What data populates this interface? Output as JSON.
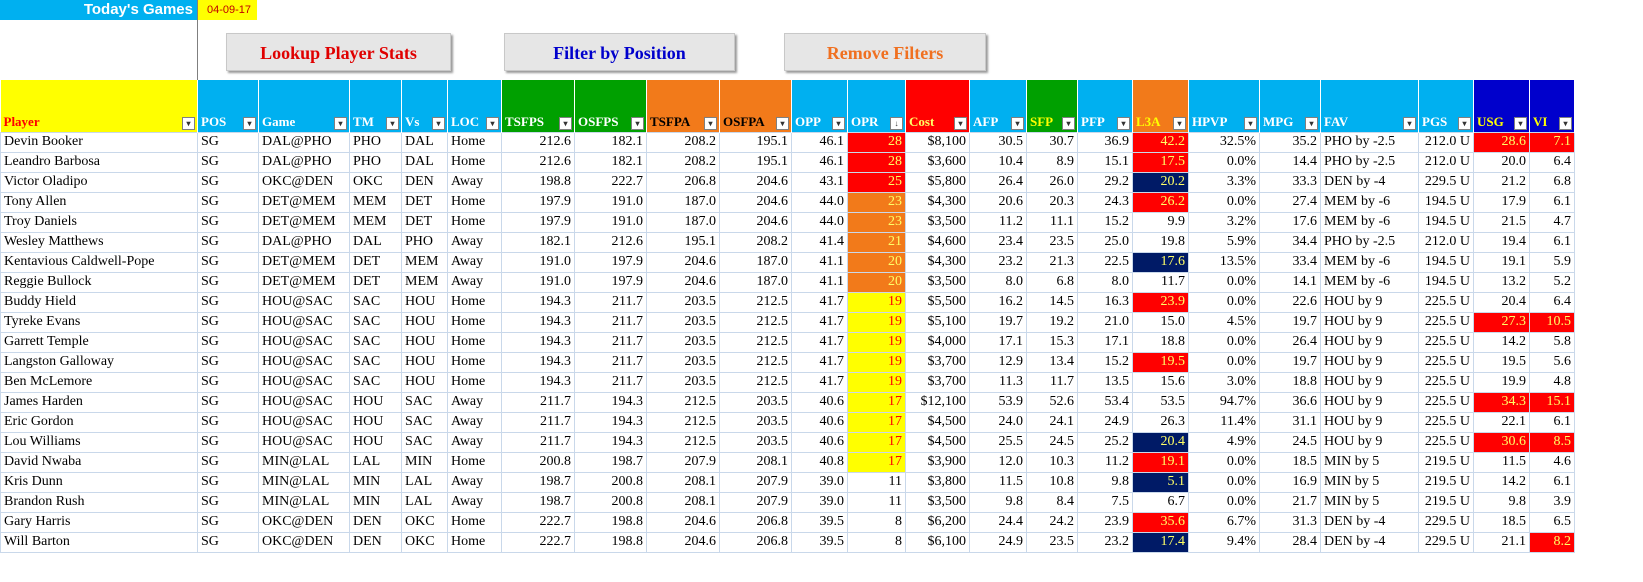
{
  "header": {
    "title": "Today's Games",
    "date": "04-09-17"
  },
  "buttons": {
    "lookup": "Lookup Player Stats",
    "filter": "Filter by Position",
    "remove": "Remove Filters"
  },
  "colors": {
    "title_bg": "#00b0f0",
    "lookup_text": "#e00000",
    "filter_text": "#0000cc",
    "remove_text": "#f07020",
    "hot": "#ff0000",
    "warm": "#f27a1a",
    "mild": "#ffff00",
    "cold": "#001a66"
  },
  "columns": [
    "Player",
    "POS",
    "Game",
    "TM",
    "Vs",
    "LOC",
    "TSFPS",
    "OSFPS",
    "TSFPA",
    "OSFPA",
    "OPP",
    "OPR",
    "Cost",
    "AFP",
    "SFP",
    "PFP",
    "L3A",
    "HPVP",
    "MPG",
    "FAV",
    "PGS",
    "USG",
    "VI"
  ],
  "rows": [
    [
      "Devin Booker",
      "SG",
      "DAL@PHO",
      "PHO",
      "DAL",
      "Home",
      "212.6",
      "182.1",
      "208.2",
      "195.1",
      "46.1",
      "28",
      "$8,100",
      "30.5",
      "30.7",
      "36.9",
      "42.2",
      "32.5%",
      "35.2",
      "PHO by -2.5",
      "212.0 U",
      "28.6",
      "7.1"
    ],
    [
      "Leandro Barbosa",
      "SG",
      "DAL@PHO",
      "PHO",
      "DAL",
      "Home",
      "212.6",
      "182.1",
      "208.2",
      "195.1",
      "46.1",
      "28",
      "$3,600",
      "10.4",
      "8.9",
      "15.1",
      "17.5",
      "0.0%",
      "14.4",
      "PHO by -2.5",
      "212.0 U",
      "20.0",
      "6.4"
    ],
    [
      "Victor Oladipo",
      "SG",
      "OKC@DEN",
      "OKC",
      "DEN",
      "Away",
      "198.8",
      "222.7",
      "206.8",
      "204.6",
      "43.1",
      "25",
      "$5,800",
      "26.4",
      "26.0",
      "29.2",
      "20.2",
      "3.3%",
      "33.3",
      "DEN by -4",
      "229.5 U",
      "21.2",
      "6.8"
    ],
    [
      "Tony Allen",
      "SG",
      "DET@MEM",
      "MEM",
      "DET",
      "Home",
      "197.9",
      "191.0",
      "187.0",
      "204.6",
      "44.0",
      "23",
      "$4,300",
      "20.6",
      "20.3",
      "24.3",
      "26.2",
      "0.0%",
      "27.4",
      "MEM by -6",
      "194.5 U",
      "17.9",
      "6.1"
    ],
    [
      "Troy Daniels",
      "SG",
      "DET@MEM",
      "MEM",
      "DET",
      "Home",
      "197.9",
      "191.0",
      "187.0",
      "204.6",
      "44.0",
      "23",
      "$3,500",
      "11.2",
      "11.1",
      "15.2",
      "9.9",
      "3.2%",
      "17.6",
      "MEM by -6",
      "194.5 U",
      "21.5",
      "4.7"
    ],
    [
      "Wesley Matthews",
      "SG",
      "DAL@PHO",
      "DAL",
      "PHO",
      "Away",
      "182.1",
      "212.6",
      "195.1",
      "208.2",
      "41.4",
      "21",
      "$4,600",
      "23.4",
      "23.5",
      "25.0",
      "19.8",
      "5.9%",
      "34.4",
      "PHO by -2.5",
      "212.0 U",
      "19.4",
      "6.1"
    ],
    [
      "Kentavious Caldwell-Pope",
      "SG",
      "DET@MEM",
      "DET",
      "MEM",
      "Away",
      "191.0",
      "197.9",
      "204.6",
      "187.0",
      "41.1",
      "20",
      "$4,300",
      "23.2",
      "21.3",
      "22.5",
      "17.6",
      "13.5%",
      "33.4",
      "MEM by -6",
      "194.5 U",
      "19.1",
      "5.9"
    ],
    [
      "Reggie Bullock",
      "SG",
      "DET@MEM",
      "DET",
      "MEM",
      "Away",
      "191.0",
      "197.9",
      "204.6",
      "187.0",
      "41.1",
      "20",
      "$3,500",
      "8.0",
      "6.8",
      "8.0",
      "11.7",
      "0.0%",
      "14.1",
      "MEM by -6",
      "194.5 U",
      "13.2",
      "5.2"
    ],
    [
      "Buddy Hield",
      "SG",
      "HOU@SAC",
      "SAC",
      "HOU",
      "Home",
      "194.3",
      "211.7",
      "203.5",
      "212.5",
      "41.7",
      "19",
      "$5,500",
      "16.2",
      "14.5",
      "16.3",
      "23.9",
      "0.0%",
      "22.6",
      "HOU by 9",
      "225.5 U",
      "20.4",
      "6.4"
    ],
    [
      "Tyreke Evans",
      "SG",
      "HOU@SAC",
      "SAC",
      "HOU",
      "Home",
      "194.3",
      "211.7",
      "203.5",
      "212.5",
      "41.7",
      "19",
      "$5,100",
      "19.7",
      "19.2",
      "21.0",
      "15.0",
      "4.5%",
      "19.7",
      "HOU by 9",
      "225.5 U",
      "27.3",
      "10.5"
    ],
    [
      "Garrett Temple",
      "SG",
      "HOU@SAC",
      "SAC",
      "HOU",
      "Home",
      "194.3",
      "211.7",
      "203.5",
      "212.5",
      "41.7",
      "19",
      "$4,000",
      "17.1",
      "15.3",
      "17.1",
      "18.8",
      "0.0%",
      "26.4",
      "HOU by 9",
      "225.5 U",
      "14.2",
      "5.8"
    ],
    [
      "Langston Galloway",
      "SG",
      "HOU@SAC",
      "SAC",
      "HOU",
      "Home",
      "194.3",
      "211.7",
      "203.5",
      "212.5",
      "41.7",
      "19",
      "$3,700",
      "12.9",
      "13.4",
      "15.2",
      "19.5",
      "0.0%",
      "19.7",
      "HOU by 9",
      "225.5 U",
      "19.5",
      "5.6"
    ],
    [
      "Ben McLemore",
      "SG",
      "HOU@SAC",
      "SAC",
      "HOU",
      "Home",
      "194.3",
      "211.7",
      "203.5",
      "212.5",
      "41.7",
      "19",
      "$3,700",
      "11.3",
      "11.7",
      "13.5",
      "15.6",
      "3.0%",
      "18.8",
      "HOU by 9",
      "225.5 U",
      "19.9",
      "4.8"
    ],
    [
      "James Harden",
      "SG",
      "HOU@SAC",
      "HOU",
      "SAC",
      "Away",
      "211.7",
      "194.3",
      "212.5",
      "203.5",
      "40.6",
      "17",
      "$12,100",
      "53.9",
      "52.6",
      "53.4",
      "53.5",
      "94.7%",
      "36.6",
      "HOU by 9",
      "225.5 U",
      "34.3",
      "15.1"
    ],
    [
      "Eric Gordon",
      "SG",
      "HOU@SAC",
      "HOU",
      "SAC",
      "Away",
      "211.7",
      "194.3",
      "212.5",
      "203.5",
      "40.6",
      "17",
      "$4,500",
      "24.0",
      "24.1",
      "24.9",
      "26.3",
      "11.4%",
      "31.1",
      "HOU by 9",
      "225.5 U",
      "22.1",
      "6.1"
    ],
    [
      "Lou Williams",
      "SG",
      "HOU@SAC",
      "HOU",
      "SAC",
      "Away",
      "211.7",
      "194.3",
      "212.5",
      "203.5",
      "40.6",
      "17",
      "$4,500",
      "25.5",
      "24.5",
      "25.2",
      "20.4",
      "4.9%",
      "24.5",
      "HOU by 9",
      "225.5 U",
      "30.6",
      "8.5"
    ],
    [
      "David Nwaba",
      "SG",
      "MIN@LAL",
      "LAL",
      "MIN",
      "Home",
      "200.8",
      "198.7",
      "207.9",
      "208.1",
      "40.8",
      "17",
      "$3,900",
      "12.0",
      "10.3",
      "11.2",
      "19.1",
      "0.0%",
      "18.5",
      "MIN by 5",
      "219.5 U",
      "11.5",
      "4.6"
    ],
    [
      "Kris Dunn",
      "SG",
      "MIN@LAL",
      "MIN",
      "LAL",
      "Away",
      "198.7",
      "200.8",
      "208.1",
      "207.9",
      "39.0",
      "11",
      "$3,800",
      "11.5",
      "10.8",
      "9.8",
      "5.1",
      "0.0%",
      "16.9",
      "MIN by 5",
      "219.5 U",
      "14.2",
      "6.1"
    ],
    [
      "Brandon Rush",
      "SG",
      "MIN@LAL",
      "MIN",
      "LAL",
      "Away",
      "198.7",
      "200.8",
      "208.1",
      "207.9",
      "39.0",
      "11",
      "$3,500",
      "9.8",
      "8.4",
      "7.5",
      "6.7",
      "0.0%",
      "21.7",
      "MIN by 5",
      "219.5 U",
      "9.8",
      "3.9"
    ],
    [
      "Gary Harris",
      "SG",
      "OKC@DEN",
      "DEN",
      "OKC",
      "Home",
      "222.7",
      "198.8",
      "204.6",
      "206.8",
      "39.5",
      "8",
      "$6,200",
      "24.4",
      "24.2",
      "23.9",
      "35.6",
      "6.7%",
      "31.3",
      "DEN by -4",
      "229.5 U",
      "18.5",
      "6.5"
    ],
    [
      "Will Barton",
      "SG",
      "OKC@DEN",
      "DEN",
      "OKC",
      "Home",
      "222.7",
      "198.8",
      "204.6",
      "206.8",
      "39.5",
      "8",
      "$6,100",
      "24.9",
      "23.5",
      "23.2",
      "17.4",
      "9.4%",
      "28.4",
      "DEN by -4",
      "229.5 U",
      "21.1",
      "8.2"
    ]
  ],
  "highlights": {
    "opr": [
      "red",
      "red",
      "red",
      "orange",
      "orange",
      "orange",
      "orange",
      "orange",
      "yellow",
      "yellow",
      "yellow",
      "yellow",
      "yellow",
      "yellow",
      "yellow",
      "yellow",
      "yellow",
      "",
      "",
      "",
      ""
    ],
    "l3a": [
      "red",
      "red",
      "navy",
      "red",
      "",
      "",
      "navy",
      "",
      "red",
      "",
      "",
      "red",
      "",
      "",
      "",
      "navy",
      "red",
      "navy",
      "",
      "red",
      "navy"
    ],
    "usg": [
      "red",
      "",
      "",
      "",
      "",
      "",
      "",
      "",
      "",
      "red",
      "",
      "",
      "",
      "red",
      "",
      "red",
      "",
      "",
      "",
      "",
      ""
    ],
    "vi": [
      "red",
      "",
      "",
      "",
      "",
      "",
      "",
      "",
      "",
      "red",
      "",
      "",
      "",
      "red",
      "",
      "red",
      "",
      "",
      "",
      "",
      "red"
    ]
  }
}
